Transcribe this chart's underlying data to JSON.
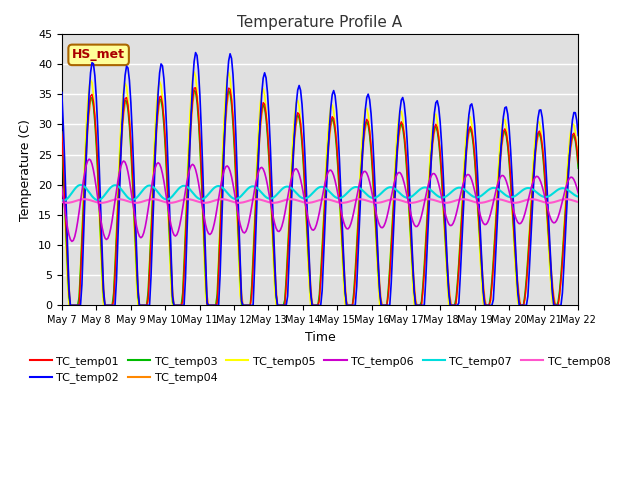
{
  "title": "Temperature Profile A",
  "xlabel": "Time",
  "ylabel": "Temperature (C)",
  "ylim": [
    0,
    45
  ],
  "annotation_text": "HS_met",
  "background_color": "#e0e0e0",
  "series_colors": {
    "TC_temp01": "#ff0000",
    "TC_temp02": "#0000ff",
    "TC_temp03": "#00bb00",
    "TC_temp04": "#ff8800",
    "TC_temp05": "#ffff00",
    "TC_temp06": "#cc00cc",
    "TC_temp07": "#00dddd",
    "TC_temp08": "#ff55cc"
  },
  "xticklabels": [
    "May 7",
    "May 8",
    "May 9",
    "May 10",
    "May 11",
    "May 12",
    "May 13",
    "May 14",
    "May 15",
    "May 16",
    "May 17",
    "May 18",
    "May 19",
    "May 20",
    "May 21",
    "May 22"
  ]
}
